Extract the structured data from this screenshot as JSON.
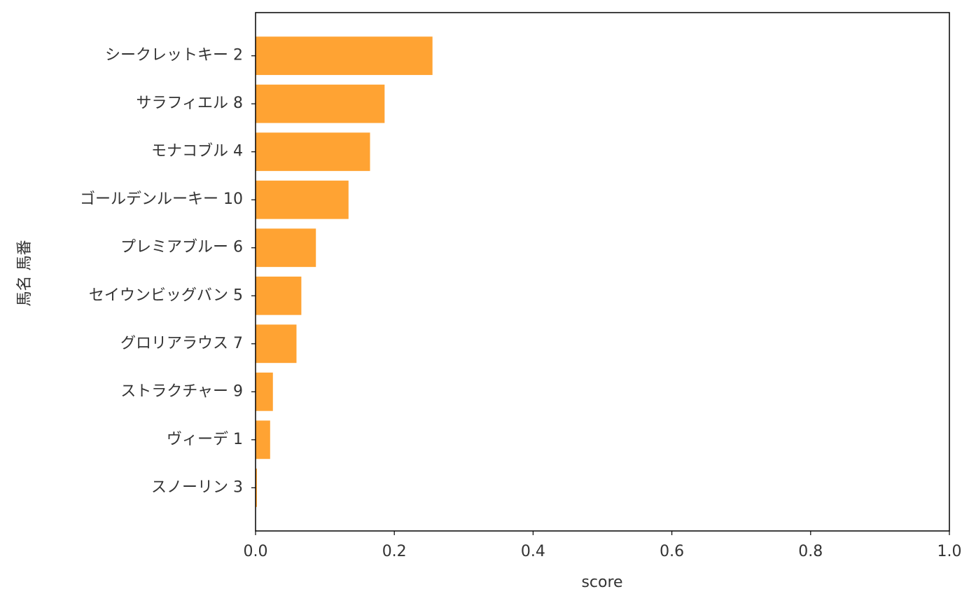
{
  "chart_data": {
    "type": "barh",
    "xlabel": "score",
    "ylabel": "馬名 馬番",
    "categories": [
      "シークレットキー 2",
      "サラフィエル 8",
      "モナコブル 4",
      "ゴールデンルーキー 10",
      "プレミアブルー 6",
      "セイウンビッグバン 5",
      "グロリアラウス 7",
      "ストラクチャー 9",
      "ヴィーデ 1",
      "スノーリン 3"
    ],
    "values": [
      0.255,
      0.186,
      0.165,
      0.134,
      0.087,
      0.066,
      0.059,
      0.025,
      0.021,
      0.002
    ],
    "color": "#ffa333",
    "xlim": [
      0,
      1
    ],
    "xticks": [
      {
        "value": 0,
        "label": "0.0"
      },
      0.2,
      0.4,
      0.6,
      0.8,
      {
        "value": 1,
        "label": "1.0"
      }
    ],
    "grid": false
  }
}
